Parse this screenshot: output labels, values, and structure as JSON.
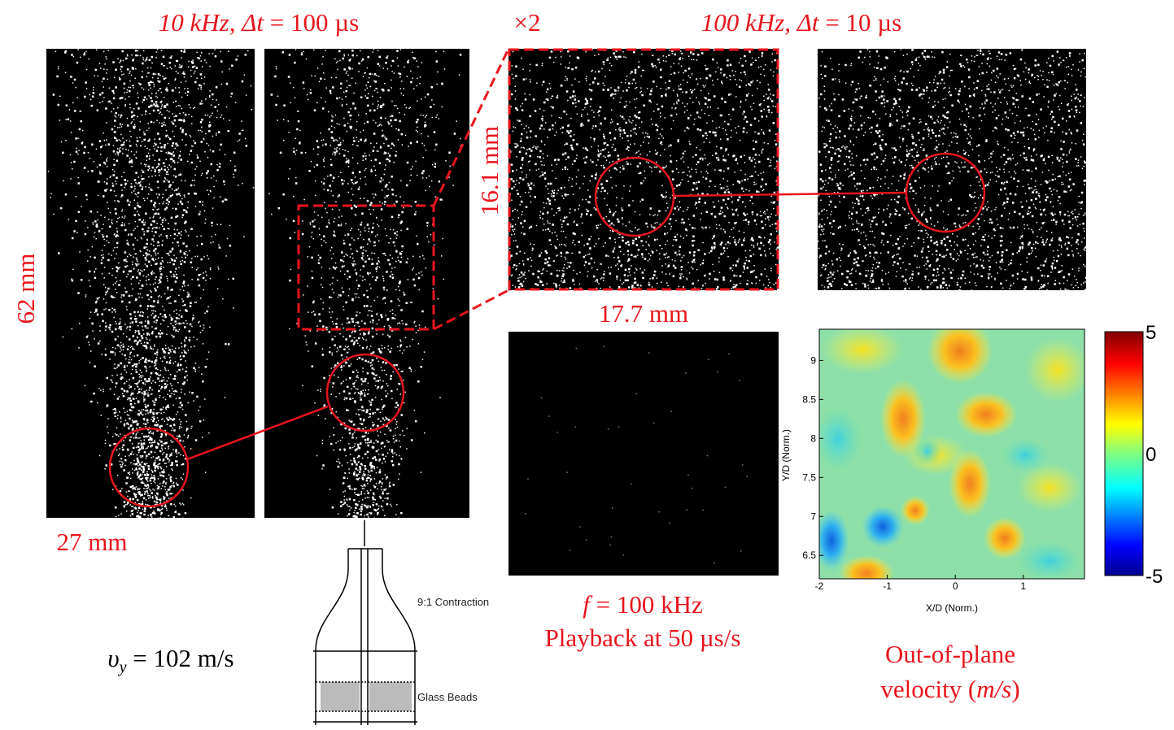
{
  "panel_titles": {
    "left": {
      "italic": "10 kHz, Δt",
      "rest": " = 100 µs"
    },
    "zoom": "×2",
    "right": {
      "italic": "100 kHz, Δt",
      "rest": " = 10 µs"
    }
  },
  "dimensions": {
    "height": "62 mm",
    "width": "27 mm",
    "zoom_height": "16.1 mm",
    "zoom_width": "17.7 mm"
  },
  "velocity": {
    "symbol": "υ",
    "subscript": "y",
    "rest": " = 102 m/s"
  },
  "diagram_labels": [
    "9:1 Contraction",
    "Glass Beads"
  ],
  "playback": {
    "italic": "f",
    "rest": " = 100 kHz",
    "line2": "Playback at 50 µs/s"
  },
  "velocity_map": {
    "xlabel": "X/D (Norm.)",
    "ylabel": "Y/D (Norm.)",
    "xlim": [
      -2,
      1.9
    ],
    "ylim": [
      6.2,
      9.4
    ],
    "xticks": [
      -2,
      -1,
      0,
      1
    ],
    "yticks": [
      6.5,
      7,
      7.5,
      8,
      8.5,
      9
    ],
    "colorbar": {
      "lim": [
        -5,
        5
      ],
      "ticks": [
        5,
        0,
        -5
      ]
    },
    "caption": {
      "line1": "Out-of-plane",
      "line2": "velocity (",
      "units": "m/s",
      "close": ")"
    }
  }
}
